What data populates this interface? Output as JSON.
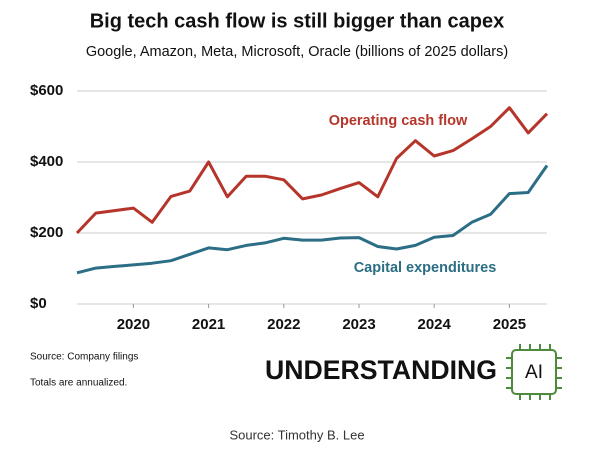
{
  "chart_data": {
    "type": "line",
    "title": "Big tech cash flow is still bigger than capex",
    "subtitle": "Google, Amazon, Meta, Microsoft, Oracle (billions of 2025 dollars)",
    "x": [
      2019.25,
      2019.5,
      2019.75,
      2020,
      2020.25,
      2020.5,
      2020.75,
      2021,
      2021.25,
      2021.5,
      2021.75,
      2022,
      2022.25,
      2022.5,
      2022.75,
      2023,
      2023.25,
      2023.5,
      2023.75,
      2024,
      2024.25,
      2024.5,
      2024.75,
      2025,
      2025.25,
      2025.5
    ],
    "series": [
      {
        "name": "Operating cash flow",
        "color": "#b5352b",
        "values": [
          200,
          256,
          263,
          270,
          230,
          303,
          318,
          400,
          302,
          360,
          360,
          350,
          296,
          307,
          325,
          342,
          302,
          410,
          460,
          417,
          432,
          465,
          500,
          553,
          482,
          536
        ]
      },
      {
        "name": "Capital expenditures",
        "color": "#2b6e85",
        "values": [
          88,
          101,
          106,
          110,
          115,
          122,
          140,
          158,
          153,
          165,
          172,
          185,
          180,
          180,
          186,
          187,
          162,
          155,
          165,
          188,
          193,
          230,
          253,
          311,
          314,
          390
        ]
      }
    ],
    "xlim": [
      2019.25,
      2025.5
    ],
    "xticks": [
      2020,
      2021,
      2022,
      2023,
      2024,
      2025
    ],
    "ylim": [
      0,
      600
    ],
    "yticks": [
      {
        "value": 0,
        "label": "$0"
      },
      {
        "value": 200,
        "label": "$200"
      },
      {
        "value": 400,
        "label": "$400"
      },
      {
        "value": 600,
        "label": "$600"
      }
    ],
    "grid": true
  },
  "notes": [
    "Source: Company filings",
    "Totals are annualized."
  ],
  "logo": {
    "word": "UNDERSTANDING",
    "badge": "AI"
  },
  "caption": "Source: Timothy B. Lee"
}
